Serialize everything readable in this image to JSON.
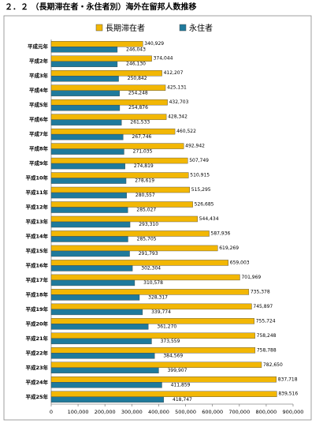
{
  "chart_data": {
    "type": "hbar",
    "title": "２．２ （長期滞在者・永住者別）海外在留邦人数推移",
    "categories": [
      "平成元年",
      "平成2年",
      "平成3年",
      "平成4年",
      "平成5年",
      "平成6年",
      "平成7年",
      "平成8年",
      "平成9年",
      "平成10年",
      "平成11年",
      "平成12年",
      "平成13年",
      "平成14年",
      "平成15年",
      "平成16年",
      "平成17年",
      "平成18年",
      "平成19年",
      "平成20年",
      "平成21年",
      "平成22年",
      "平成23年",
      "平成24年",
      "平成25年"
    ],
    "series": [
      {
        "name": "長期滞在者",
        "color": "#f2b705",
        "values": [
          340929,
          374044,
          412207,
          425131,
          432703,
          428342,
          460522,
          492942,
          507749,
          510915,
          515295,
          526685,
          544434,
          587936,
          619269,
          659003,
          701969,
          735378,
          745897,
          755724,
          758248,
          758788,
          782650,
          837718,
          839516
        ],
        "value_labels": [
          "340,929",
          "374,044",
          "412,207",
          "425,131",
          "432,703",
          "428,342",
          "460,522",
          "492,942",
          "507,749",
          "510,915",
          "515,295",
          "526,685",
          "544,434",
          "587,936",
          "619,269",
          "659,003",
          "701,969",
          "735,378",
          "745,897",
          "755,724",
          "758,248",
          "758,788",
          "782,650",
          "837,718",
          "839,516"
        ]
      },
      {
        "name": "永住者",
        "color": "#1f7a9c",
        "values": [
          246043,
          246130,
          250842,
          254248,
          254876,
          261533,
          267746,
          271035,
          274819,
          278619,
          280557,
          285027,
          293310,
          285705,
          291793,
          302304,
          310578,
          328317,
          339774,
          361270,
          373559,
          384569,
          399907,
          411859,
          418747
        ],
        "value_labels": [
          "246,043",
          "246,130",
          "250,842",
          "254,248",
          "254,876",
          "261,533",
          "267,746",
          "271,035",
          "274,819",
          "278,619",
          "280,557",
          "285,027",
          "293,310",
          "285,705",
          "291,793",
          "302,304",
          "310,578",
          "328,317",
          "339,774",
          "361,270",
          "373,559",
          "384,569",
          "399,907",
          "411,859",
          "418,747"
        ]
      }
    ],
    "xlim": [
      0,
      900000
    ],
    "xticks": [
      0,
      {
        "value": 100000,
        "label": "100,000"
      },
      {
        "value": 200000,
        "label": "200,000"
      },
      {
        "value": 300000,
        "label": "300,000"
      },
      {
        "value": 400000,
        "label": "400,000"
      },
      {
        "value": 500000,
        "label": "500,000"
      },
      {
        "value": 600000,
        "label": "600,000"
      },
      {
        "value": 700000,
        "label": "700,000"
      },
      {
        "value": 800000,
        "label": "800,000"
      },
      {
        "value": 900000,
        "label": "900,000"
      }
    ],
    "legend": "top"
  }
}
